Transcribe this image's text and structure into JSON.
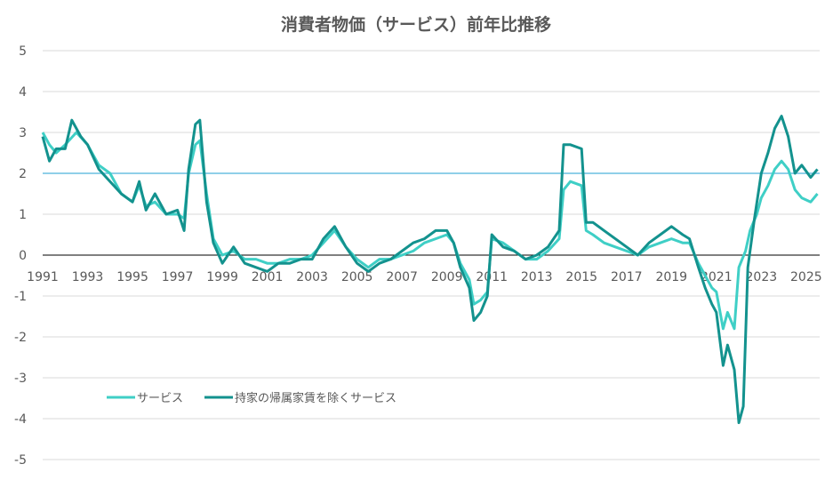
{
  "chart_data": {
    "type": "line",
    "title": "消費者物価（サービス）前年比推移",
    "xlabel": "",
    "ylabel": "",
    "xlim": [
      1991,
      2025.6
    ],
    "ylim": [
      -5,
      5
    ],
    "x_ticks": [
      "1991",
      "1993",
      "1995",
      "1997",
      "1999",
      "2001",
      "2003",
      "2005",
      "2007",
      "2009",
      "2011",
      "2013",
      "2015",
      "2017",
      "2019",
      "2021",
      "2023",
      "2025"
    ],
    "y_ticks": [
      "5",
      "4",
      "3",
      "2",
      "1",
      "0",
      "-1",
      "-2",
      "-3",
      "-4",
      "-5"
    ],
    "grid": true,
    "legend_position": "bottom-left (inside plot)",
    "reference_line": {
      "y": 2,
      "color": "#8fcfe8"
    },
    "series": [
      {
        "name": "サービス",
        "color": "#3fcfc6",
        "points": [
          [
            1991.0,
            3.0
          ],
          [
            1991.3,
            2.7
          ],
          [
            1991.6,
            2.5
          ],
          [
            1992.0,
            2.7
          ],
          [
            1992.5,
            3.0
          ],
          [
            1993.0,
            2.7
          ],
          [
            1993.5,
            2.2
          ],
          [
            1994.0,
            2.0
          ],
          [
            1994.5,
            1.5
          ],
          [
            1995.0,
            1.3
          ],
          [
            1995.3,
            1.7
          ],
          [
            1995.6,
            1.2
          ],
          [
            1996.0,
            1.3
          ],
          [
            1996.5,
            1.0
          ],
          [
            1997.0,
            1.0
          ],
          [
            1997.3,
            0.9
          ],
          [
            1997.5,
            2.0
          ],
          [
            1997.8,
            2.7
          ],
          [
            1998.0,
            2.8
          ],
          [
            1998.3,
            1.5
          ],
          [
            1998.6,
            0.4
          ],
          [
            1999.0,
            0.0
          ],
          [
            1999.5,
            0.1
          ],
          [
            2000.0,
            -0.1
          ],
          [
            2000.5,
            -0.1
          ],
          [
            2001.0,
            -0.2
          ],
          [
            2001.5,
            -0.2
          ],
          [
            2002.0,
            -0.1
          ],
          [
            2002.5,
            -0.1
          ],
          [
            2003.0,
            0.0
          ],
          [
            2003.5,
            0.3
          ],
          [
            2004.0,
            0.6
          ],
          [
            2004.5,
            0.2
          ],
          [
            2005.0,
            -0.1
          ],
          [
            2005.5,
            -0.3
          ],
          [
            2006.0,
            -0.1
          ],
          [
            2006.5,
            -0.1
          ],
          [
            2007.0,
            0.0
          ],
          [
            2007.5,
            0.1
          ],
          [
            2008.0,
            0.3
          ],
          [
            2008.5,
            0.4
          ],
          [
            2009.0,
            0.5
          ],
          [
            2009.3,
            0.3
          ],
          [
            2009.6,
            -0.2
          ],
          [
            2010.0,
            -0.6
          ],
          [
            2010.2,
            -1.2
          ],
          [
            2010.5,
            -1.1
          ],
          [
            2010.8,
            -0.9
          ],
          [
            2011.0,
            0.4
          ],
          [
            2011.5,
            0.3
          ],
          [
            2012.0,
            0.1
          ],
          [
            2012.5,
            -0.1
          ],
          [
            2013.0,
            -0.1
          ],
          [
            2013.5,
            0.1
          ],
          [
            2014.0,
            0.4
          ],
          [
            2014.2,
            1.6
          ],
          [
            2014.5,
            1.8
          ],
          [
            2015.0,
            1.7
          ],
          [
            2015.2,
            0.6
          ],
          [
            2015.5,
            0.5
          ],
          [
            2016.0,
            0.3
          ],
          [
            2016.5,
            0.2
          ],
          [
            2017.0,
            0.1
          ],
          [
            2017.5,
            0.0
          ],
          [
            2018.0,
            0.2
          ],
          [
            2018.5,
            0.3
          ],
          [
            2019.0,
            0.4
          ],
          [
            2019.5,
            0.3
          ],
          [
            2019.8,
            0.3
          ],
          [
            2020.2,
            -0.2
          ],
          [
            2020.5,
            -0.5
          ],
          [
            2020.8,
            -0.8
          ],
          [
            2021.0,
            -0.9
          ],
          [
            2021.3,
            -1.8
          ],
          [
            2021.5,
            -1.4
          ],
          [
            2021.8,
            -1.8
          ],
          [
            2022.0,
            -0.3
          ],
          [
            2022.3,
            0.1
          ],
          [
            2022.5,
            0.6
          ],
          [
            2022.8,
            1.0
          ],
          [
            2023.0,
            1.4
          ],
          [
            2023.3,
            1.7
          ],
          [
            2023.6,
            2.1
          ],
          [
            2023.9,
            2.3
          ],
          [
            2024.2,
            2.1
          ],
          [
            2024.5,
            1.6
          ],
          [
            2024.8,
            1.4
          ],
          [
            2025.2,
            1.3
          ],
          [
            2025.5,
            1.5
          ]
        ]
      },
      {
        "name": "持家の帰属家賃を除くサービス",
        "color": "#13928e",
        "points": [
          [
            1991.0,
            2.9
          ],
          [
            1991.3,
            2.3
          ],
          [
            1991.6,
            2.6
          ],
          [
            1992.0,
            2.6
          ],
          [
            1992.3,
            3.3
          ],
          [
            1992.7,
            2.9
          ],
          [
            1993.0,
            2.7
          ],
          [
            1993.5,
            2.1
          ],
          [
            1994.0,
            1.8
          ],
          [
            1994.5,
            1.5
          ],
          [
            1995.0,
            1.3
          ],
          [
            1995.3,
            1.8
          ],
          [
            1995.6,
            1.1
          ],
          [
            1996.0,
            1.5
          ],
          [
            1996.5,
            1.0
          ],
          [
            1997.0,
            1.1
          ],
          [
            1997.3,
            0.6
          ],
          [
            1997.5,
            2.1
          ],
          [
            1997.8,
            3.2
          ],
          [
            1998.0,
            3.3
          ],
          [
            1998.3,
            1.3
          ],
          [
            1998.6,
            0.3
          ],
          [
            1999.0,
            -0.2
          ],
          [
            1999.5,
            0.2
          ],
          [
            2000.0,
            -0.2
          ],
          [
            2000.5,
            -0.3
          ],
          [
            2001.0,
            -0.4
          ],
          [
            2001.5,
            -0.2
          ],
          [
            2002.0,
            -0.2
          ],
          [
            2002.5,
            -0.1
          ],
          [
            2003.0,
            -0.1
          ],
          [
            2003.5,
            0.4
          ],
          [
            2004.0,
            0.7
          ],
          [
            2004.5,
            0.2
          ],
          [
            2005.0,
            -0.2
          ],
          [
            2005.5,
            -0.4
          ],
          [
            2006.0,
            -0.2
          ],
          [
            2006.5,
            -0.1
          ],
          [
            2007.0,
            0.1
          ],
          [
            2007.5,
            0.3
          ],
          [
            2008.0,
            0.4
          ],
          [
            2008.5,
            0.6
          ],
          [
            2009.0,
            0.6
          ],
          [
            2009.3,
            0.3
          ],
          [
            2009.6,
            -0.3
          ],
          [
            2010.0,
            -0.8
          ],
          [
            2010.2,
            -1.6
          ],
          [
            2010.5,
            -1.4
          ],
          [
            2010.8,
            -1.0
          ],
          [
            2011.0,
            0.5
          ],
          [
            2011.5,
            0.2
          ],
          [
            2012.0,
            0.1
          ],
          [
            2012.5,
            -0.1
          ],
          [
            2013.0,
            0.0
          ],
          [
            2013.5,
            0.2
          ],
          [
            2014.0,
            0.6
          ],
          [
            2014.2,
            2.7
          ],
          [
            2014.5,
            2.7
          ],
          [
            2015.0,
            2.6
          ],
          [
            2015.2,
            0.8
          ],
          [
            2015.5,
            0.8
          ],
          [
            2016.0,
            0.6
          ],
          [
            2016.5,
            0.4
          ],
          [
            2017.0,
            0.2
          ],
          [
            2017.5,
            0.0
          ],
          [
            2018.0,
            0.3
          ],
          [
            2018.5,
            0.5
          ],
          [
            2019.0,
            0.7
          ],
          [
            2019.5,
            0.5
          ],
          [
            2019.8,
            0.4
          ],
          [
            2020.2,
            -0.3
          ],
          [
            2020.5,
            -0.8
          ],
          [
            2020.8,
            -1.2
          ],
          [
            2021.0,
            -1.4
          ],
          [
            2021.3,
            -2.7
          ],
          [
            2021.5,
            -2.2
          ],
          [
            2021.8,
            -2.8
          ],
          [
            2022.0,
            -4.1
          ],
          [
            2022.2,
            -3.7
          ],
          [
            2022.4,
            -0.3
          ],
          [
            2022.7,
            0.9
          ],
          [
            2023.0,
            2.0
          ],
          [
            2023.3,
            2.5
          ],
          [
            2023.6,
            3.1
          ],
          [
            2023.9,
            3.4
          ],
          [
            2024.2,
            2.9
          ],
          [
            2024.5,
            2.0
          ],
          [
            2024.8,
            2.2
          ],
          [
            2025.2,
            1.9
          ],
          [
            2025.5,
            2.1
          ]
        ]
      }
    ]
  }
}
